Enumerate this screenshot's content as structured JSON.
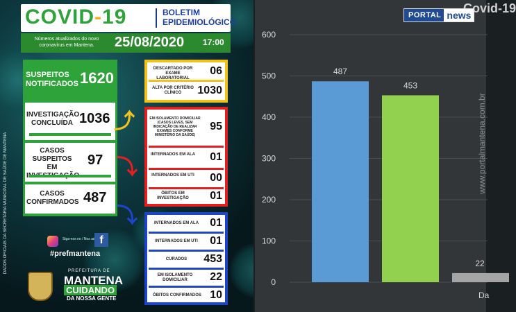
{
  "bulletin": {
    "title_main": "COVID",
    "title_dash": "-",
    "title_num": "19",
    "subtitle_line1": "BOLETIM",
    "subtitle_line2": "EPIDEMIOLÓGICO",
    "update_note": "Números atualizados do novo coronavírus em Mantena.",
    "date": "25/08/2020",
    "time": "17:00"
  },
  "summary": {
    "suspects_label": "SUSPEITOS NOTIFICADOS",
    "suspects_value": "1620",
    "investigation_label": "INVESTIGAÇÃO CONCLUÍDA",
    "investigation_value": "1036",
    "under_investigation_label": "CASOS SUSPEITOS EM INVESTIGAÇÃO",
    "under_investigation_value": "97",
    "confirmed_label": "CASOS CONFIRMADOS",
    "confirmed_value": "487"
  },
  "concluded": [
    {
      "label": "DESCARTADO POR EXAME LABORATORIAL",
      "value": "06"
    },
    {
      "label": "ALTA POR CRITÉRIO CLÍNICO",
      "value": "1030"
    }
  ],
  "investigation_detail": [
    {
      "label": "EM ISOLAMENTO DOMICILIAR (CASOS LEVES, SEM INDICAÇÃO DE REALIZAR EXAMES CONFORME MINISTÉRIO DA SAÚDE)",
      "value": "95"
    },
    {
      "label": "INTERNADOS EM ALA",
      "value": "01"
    },
    {
      "label": "INTERNADOS EM UTI",
      "value": "00"
    },
    {
      "label": "ÓBITOS EM INVESTIGAÇÃO",
      "value": "01"
    }
  ],
  "confirmed_detail": [
    {
      "label": "INTERNADOS EM ALA",
      "value": "01"
    },
    {
      "label": "INTERNADOS EM UTI",
      "value": "01"
    },
    {
      "label": "CURADOS",
      "value": "453"
    },
    {
      "label": "EM ISOLAMENTO DOMICILIAR",
      "value": "22"
    },
    {
      "label": "ÓBITOS CONFIRMADOS",
      "value": "10"
    }
  ],
  "side_text": "DADOS OFICIAIS DA SECRETARIA MUNICIPAL DE SAÚDE DE MANTENA",
  "social": {
    "tagline": "Siga-nos no / Nos adicione",
    "hashtag": "#prefmantena",
    "fb_letter": "f"
  },
  "prefecture": {
    "top": "PREFEITURA DE",
    "city": "MANTENA",
    "slogan": "CUIDANDO",
    "slogan_sub": "DA NOSSA GENTE"
  },
  "portal": {
    "brand_left": "PORTAL",
    "brand_right": "news",
    "watermark": "www.portalmantena.com.br",
    "chart_title_fragment": "Covid-19"
  },
  "colors": {
    "bar1": "#5b9bd5",
    "bar2": "#92d050",
    "bar3": "#a5a5a5",
    "yellow": "#f2c21b",
    "red": "#e12020",
    "blue": "#1e44c8",
    "green": "#2ea33a"
  },
  "chart_data": {
    "type": "bar",
    "title": "Covid-19",
    "categories": [
      "",
      "",
      "Da"
    ],
    "values": [
      487,
      453,
      22
    ],
    "ylim": [
      0,
      600
    ],
    "yticks": [
      0,
      100,
      200,
      300,
      400,
      500,
      600
    ],
    "data_labels": [
      "487",
      "453",
      "22"
    ],
    "grid": true
  }
}
